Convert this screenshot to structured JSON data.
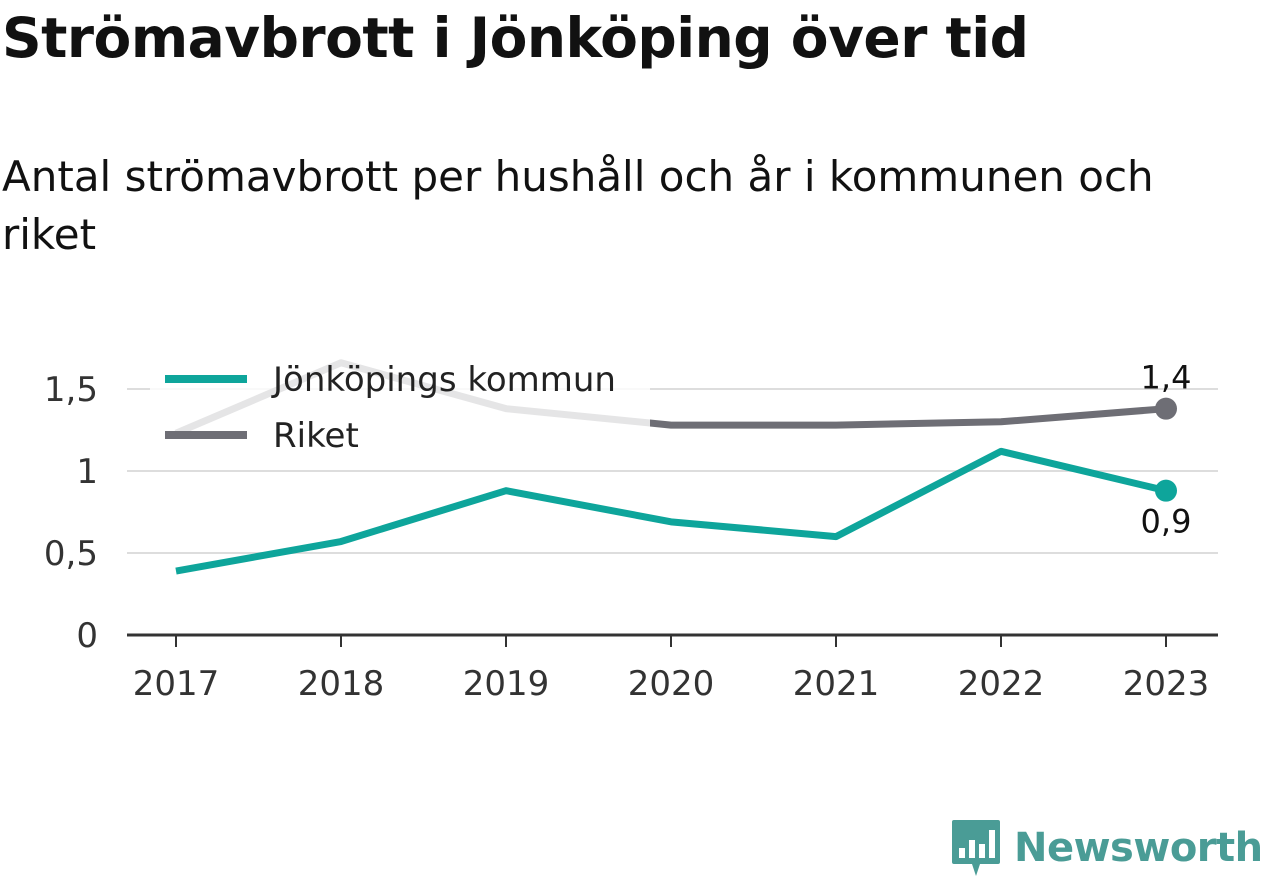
{
  "title": "Strömavbrott i Jönköping över tid",
  "subtitle": "Antal strömavbrott per hushåll och år i kommunen och riket",
  "brand": "Newsworthy",
  "chart_data": {
    "type": "line",
    "x": [
      "2017",
      "2018",
      "2019",
      "2020",
      "2021",
      "2022",
      "2023"
    ],
    "yticks": [
      "0",
      "0,5",
      "1",
      "1,5"
    ],
    "ylim": [
      0,
      1.85
    ],
    "grid": true,
    "legend_position": "top-left",
    "series": [
      {
        "name": "Jönköpings kommun",
        "color": "#0ea59b",
        "values": [
          0.39,
          0.57,
          0.88,
          0.69,
          0.6,
          1.12,
          0.88
        ],
        "end_label": "0,9"
      },
      {
        "name": "Riket",
        "color": "#6e6e75",
        "values": [
          1.23,
          1.66,
          1.38,
          1.28,
          1.28,
          1.3,
          1.38
        ],
        "end_label": "1,4"
      }
    ]
  },
  "colors": {
    "grid": "#dddddd",
    "axis": "#333333",
    "brand": "#4a9c96"
  }
}
